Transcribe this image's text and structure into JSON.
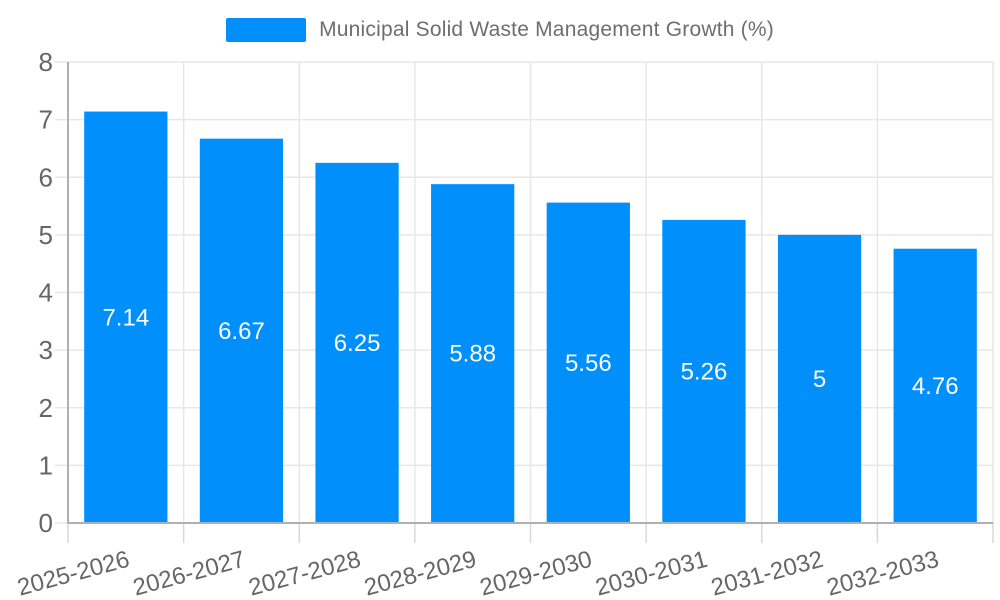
{
  "legend": {
    "label": "Municipal Solid Waste Management Growth (%)"
  },
  "colors": {
    "bar": "#008FFB",
    "grid": "#e7e7e7",
    "axis": "#b0b0b0",
    "tick": "#d8d8d8",
    "axis_label": "#666666",
    "value_label": "#ffffff",
    "legend_text": "#6e6e6e",
    "background": "#ffffff"
  },
  "chart_data": {
    "type": "bar",
    "title": "Municipal Solid Waste Management Growth (%)",
    "xlabel": "",
    "ylabel": "",
    "categories": [
      "2025-2026",
      "2026-2027",
      "2027-2028",
      "2028-2029",
      "2029-2030",
      "2030-2031",
      "2031-2032",
      "2032-2033"
    ],
    "values": [
      7.14,
      6.67,
      6.25,
      5.88,
      5.56,
      5.26,
      5,
      4.76
    ],
    "value_labels": [
      "7.14",
      "6.67",
      "6.25",
      "5.88",
      "5.56",
      "5.26",
      "5",
      "4.76"
    ],
    "ylim": [
      0,
      8
    ],
    "yticks": [
      0,
      1,
      2,
      3,
      4,
      5,
      6,
      7,
      8
    ],
    "grid": true,
    "legend_position": "top",
    "x_label_rotation_deg": -15
  }
}
